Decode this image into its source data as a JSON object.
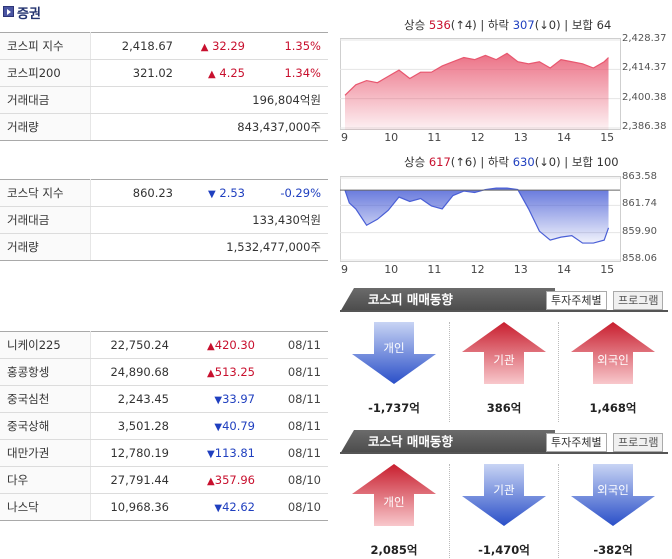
{
  "header": {
    "title": "증권"
  },
  "kospi": {
    "rows": [
      {
        "label": "코스피 지수",
        "value": "2,418.67",
        "change": "32.29",
        "dir": "up",
        "rate": "1.35%"
      },
      {
        "label": "코스피200",
        "value": "321.02",
        "change": "4.25",
        "dir": "up",
        "rate": "1.34%"
      },
      {
        "label": "거래대금",
        "value": "196,804억원"
      },
      {
        "label": "거래량",
        "value": "843,437,000주"
      }
    ]
  },
  "kosdaq": {
    "rows": [
      {
        "label": "코스닥 지수",
        "value": "860.23",
        "change": "2.53",
        "dir": "down",
        "rate": "-0.29%"
      },
      {
        "label": "거래대금",
        "value": "133,430억원"
      },
      {
        "label": "거래량",
        "value": "1,532,477,000주"
      }
    ]
  },
  "world": {
    "rows": [
      {
        "label": "니케이225",
        "value": "22,750.24",
        "change": "420.30",
        "dir": "up",
        "date": "08/11"
      },
      {
        "label": "홍콩항셍",
        "value": "24,890.68",
        "change": "513.25",
        "dir": "up",
        "date": "08/11"
      },
      {
        "label": "중국심천",
        "value": "2,243.45",
        "change": "33.97",
        "dir": "down",
        "date": "08/11"
      },
      {
        "label": "중국상해",
        "value": "3,501.28",
        "change": "40.79",
        "dir": "down",
        "date": "08/11"
      },
      {
        "label": "대만가권",
        "value": "12,780.19",
        "change": "113.81",
        "dir": "down",
        "date": "08/11"
      },
      {
        "label": "다우",
        "value": "27,791.44",
        "change": "357.96",
        "dir": "up",
        "date": "08/10"
      },
      {
        "label": "나스닥",
        "value": "10,968.36",
        "change": "42.62",
        "dir": "down",
        "date": "08/10"
      }
    ]
  },
  "chart_data": [
    {
      "type": "area",
      "caption": {
        "up_label": "상승",
        "up_count": "536",
        "up_limit": "(↑4)",
        "down_label": "하락",
        "down_count": "307",
        "down_limit": "(↓0)",
        "flat_label": "보합",
        "flat_count": "64"
      },
      "xticks": [
        "9",
        "10",
        "11",
        "12",
        "13",
        "14",
        "15"
      ],
      "yticks": [
        "2,428.37",
        "2,414.37",
        "2,400.38",
        "2,386.38"
      ],
      "ylim": [
        2386.38,
        2428.37
      ],
      "color": "#e8576f",
      "x": [
        9.0,
        9.1,
        9.25,
        9.5,
        9.75,
        10.0,
        10.25,
        10.5,
        10.75,
        11.0,
        11.25,
        11.5,
        11.75,
        12.0,
        12.25,
        12.5,
        12.75,
        13.0,
        13.25,
        13.5,
        13.75,
        14.0,
        14.25,
        14.5,
        14.75,
        15.0,
        15.1
      ],
      "values": [
        2402,
        2404,
        2407,
        2409,
        2408,
        2411,
        2414,
        2410,
        2413,
        2413,
        2416,
        2418,
        2420,
        2419,
        2421,
        2419,
        2422,
        2418,
        2417,
        2418,
        2415,
        2419,
        2418,
        2417,
        2415,
        2418,
        2420
      ]
    },
    {
      "type": "area",
      "caption": {
        "up_label": "상승",
        "up_count": "617",
        "up_limit": "(↑6)",
        "down_label": "하락",
        "down_count": "630",
        "down_limit": "(↓0)",
        "flat_label": "보합",
        "flat_count": "100"
      },
      "xticks": [
        "9",
        "10",
        "11",
        "12",
        "13",
        "14",
        "15"
      ],
      "yticks": [
        "863.58",
        "861.74",
        "859.90",
        "858.06"
      ],
      "ylim": [
        858.06,
        863.58
      ],
      "baseline": 862.76,
      "color": "#4a5fd6",
      "x": [
        9.0,
        9.1,
        9.25,
        9.5,
        9.75,
        10.0,
        10.25,
        10.5,
        10.75,
        11.0,
        11.25,
        11.5,
        11.75,
        12.0,
        12.25,
        12.5,
        12.75,
        13.0,
        13.25,
        13.5,
        13.75,
        14.0,
        14.25,
        14.5,
        14.75,
        15.0,
        15.1
      ],
      "values": [
        862.76,
        861.9,
        861.5,
        860.4,
        860.8,
        861.4,
        862.3,
        862.0,
        862.2,
        861.7,
        861.5,
        862.4,
        862.7,
        862.6,
        862.8,
        862.9,
        862.9,
        862.8,
        861.5,
        860.0,
        859.4,
        859.6,
        859.7,
        859.2,
        859.2,
        859.4,
        860.23
      ]
    }
  ],
  "kospi_trend": {
    "title": "코스피 매매동향",
    "tab_investor": "투자주체별",
    "tab_program": "프로그램",
    "items": [
      {
        "name": "개인",
        "amount": "-1,737억",
        "dir": "down"
      },
      {
        "name": "기관",
        "amount": "386억",
        "dir": "up"
      },
      {
        "name": "외국인",
        "amount": "1,468억",
        "dir": "up"
      }
    ]
  },
  "kosdaq_trend": {
    "title": "코스닥 매매동향",
    "tab_investor": "투자주체별",
    "tab_program": "프로그램",
    "items": [
      {
        "name": "개인",
        "amount": "2,085억",
        "dir": "up"
      },
      {
        "name": "기관",
        "amount": "-1,470억",
        "dir": "down"
      },
      {
        "name": "외국인",
        "amount": "-382억",
        "dir": "down"
      }
    ]
  }
}
